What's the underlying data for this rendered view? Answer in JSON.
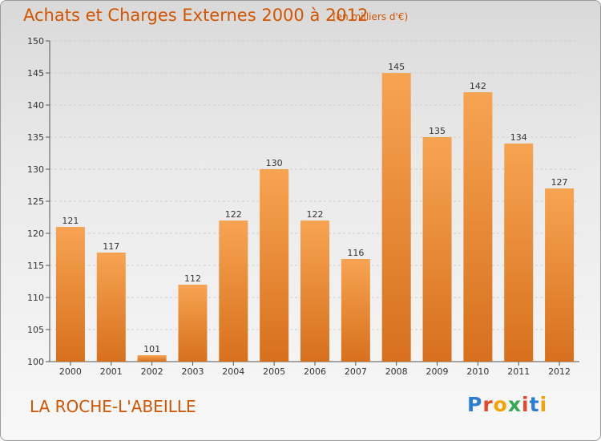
{
  "header": {
    "title": "Achats et Charges Externes 2000 à 2012",
    "unit": "(en milliers d'€)"
  },
  "footer": {
    "commune": "LA ROCHE-L'ABEILLE",
    "logo": "Proxiti"
  },
  "colors": {
    "accent": "#d35400",
    "bar_top": "#f7a452",
    "bar_bottom": "#d7701c",
    "logo_letters": [
      "#2a7fd4",
      "#e8462a",
      "#f4a300",
      "#34a853",
      "#e8462a",
      "#2a7fd4",
      "#f4a300"
    ]
  },
  "chart_data": {
    "type": "bar",
    "title": "Achats et Charges Externes 2000 à 2012",
    "subtitle": "(en milliers d'€)",
    "categories": [
      "2000",
      "2001",
      "2002",
      "2003",
      "2004",
      "2005",
      "2006",
      "2007",
      "2008",
      "2009",
      "2010",
      "2011",
      "2012"
    ],
    "values": [
      121,
      117,
      101,
      112,
      122,
      130,
      122,
      116,
      145,
      135,
      142,
      134,
      127
    ],
    "ylim": [
      100,
      150
    ],
    "yticks": [
      100,
      105,
      110,
      115,
      120,
      125,
      130,
      135,
      140,
      145,
      150
    ],
    "grid": true,
    "data_labels": true
  }
}
